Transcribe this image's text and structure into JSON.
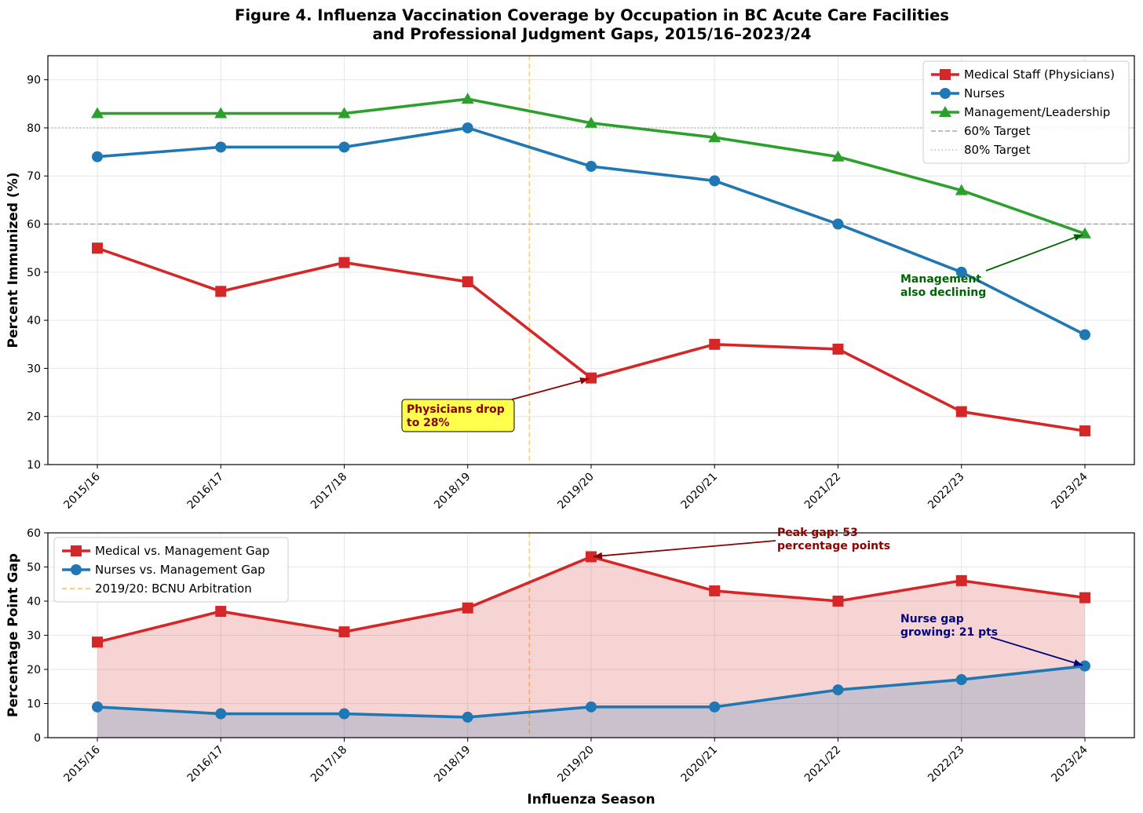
{
  "title_line1": "Figure 4. Influenza Vaccination Coverage by Occupation in BC Acute Care Facilities",
  "title_line2": "and Professional Judgment Gaps, 2015/16–2023/24",
  "chart_data": [
    {
      "type": "line",
      "categories": [
        "2015/16",
        "2016/17",
        "2017/18",
        "2018/19",
        "2019/20",
        "2020/21",
        "2021/22",
        "2022/23",
        "2023/24"
      ],
      "ylabel": "Percent Immunized (%)",
      "xlabel": "",
      "ylim": [
        10,
        95
      ],
      "yticks": [
        10,
        20,
        30,
        40,
        50,
        60,
        70,
        80,
        90
      ],
      "grid": true,
      "legend_position": "top-right",
      "series": [
        {
          "name": "Medical Staff (Physicians)",
          "color": "#d62728",
          "marker": "square",
          "values": [
            55,
            46,
            52,
            48,
            28,
            35,
            34,
            21,
            17
          ]
        },
        {
          "name": "Nurses",
          "color": "#1f77b4",
          "marker": "circle",
          "values": [
            74,
            76,
            76,
            80,
            72,
            69,
            60,
            50,
            37
          ]
        },
        {
          "name": "Management/Leadership",
          "color": "#2ca02c",
          "marker": "triangle",
          "values": [
            83,
            83,
            83,
            86,
            81,
            78,
            74,
            67,
            58
          ]
        }
      ],
      "reference_lines": [
        {
          "name": "60% Target",
          "value": 60,
          "style": "dashed",
          "color": "#999999"
        },
        {
          "name": "80% Target",
          "value": 80,
          "style": "dotted",
          "color": "#aaaaaa"
        }
      ],
      "vertical_marker": {
        "position": 3.5,
        "color": "#ffc04d"
      },
      "annotations": [
        {
          "text_lines": [
            "Physicians drop",
            "to 28%"
          ],
          "target_category": "2019/20",
          "target_value": 28,
          "color": "#8b0000",
          "box_color": "#ffff4d"
        },
        {
          "text_lines": [
            "Management",
            "also declining"
          ],
          "target_category": "2023/24",
          "target_value": 58,
          "color": "#006400"
        }
      ]
    },
    {
      "type": "area",
      "categories": [
        "2015/16",
        "2016/17",
        "2017/18",
        "2018/19",
        "2019/20",
        "2020/21",
        "2021/22",
        "2022/23",
        "2023/24"
      ],
      "ylabel": "Percentage Point Gap",
      "xlabel": "Influenza Season",
      "ylim": [
        0,
        60
      ],
      "yticks": [
        0,
        10,
        20,
        30,
        40,
        50,
        60
      ],
      "grid": true,
      "legend_position": "top-left",
      "series": [
        {
          "name": "Medical vs. Management Gap",
          "color": "#d62728",
          "marker": "square",
          "values": [
            28,
            37,
            31,
            38,
            53,
            43,
            40,
            46,
            41
          ]
        },
        {
          "name": "Nurses vs. Management Gap",
          "color": "#1f77b4",
          "marker": "circle",
          "values": [
            9,
            7,
            7,
            6,
            9,
            9,
            14,
            17,
            21
          ]
        }
      ],
      "vertical_marker": {
        "name": "2019/20: BCNU Arbitration",
        "position": 3.5,
        "color": "#ffc04d"
      },
      "annotations": [
        {
          "text_lines": [
            "Peak gap: 53",
            "percentage points"
          ],
          "target_category": "2019/20",
          "target_value": 53,
          "color": "#8b0000"
        },
        {
          "text_lines": [
            "Nurse gap",
            "growing: 21 pts"
          ],
          "target_category": "2023/24",
          "target_value": 21,
          "color": "#000080"
        }
      ]
    }
  ]
}
